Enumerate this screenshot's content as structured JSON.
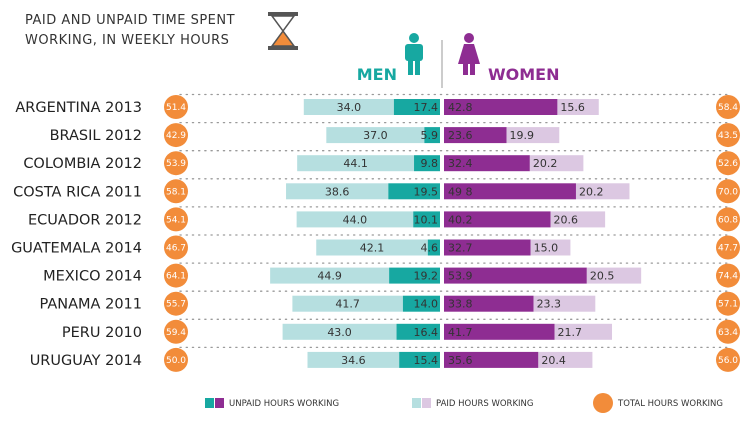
{
  "title_lines": [
    "PAID AND UNPAID TIME SPENT",
    "WORKING, IN WEEKLY HOURS"
  ],
  "colors": {
    "men_unpaid": "#17a8a1",
    "men_paid": "#b6dfe0",
    "women_unpaid": "#8e2d92",
    "women_paid": "#dcc8e2",
    "total": "#f28c3a",
    "icon_hourglass": "#f28c3a"
  },
  "chart_data": {
    "type": "bar",
    "orientation": "horizontal-diverging",
    "men_label": "MEN",
    "women_label": "WOMEN",
    "categories": [
      "ARGENTINA 2013",
      "BRASIL 2012",
      "COLOMBIA 2012",
      "COSTA RICA 2011",
      "ECUADOR 2012",
      "GUATEMALA 2014",
      "MEXICO 2014",
      "PANAMA 2011",
      "PERU 2010",
      "URUGUAY 2014"
    ],
    "series": [
      {
        "name": "UNPAID HOURS WORKING",
        "group": "men",
        "values": [
          17.4,
          5.9,
          9.8,
          19.5,
          10.1,
          4.6,
          19.2,
          14.0,
          16.4,
          15.4
        ]
      },
      {
        "name": "PAID HOURS WORKING",
        "group": "men",
        "values": [
          34.0,
          37.0,
          44.1,
          38.6,
          44.0,
          42.1,
          44.9,
          41.7,
          43.0,
          34.6
        ]
      },
      {
        "name": "UNPAID HOURS WORKING",
        "group": "women",
        "values": [
          42.8,
          23.6,
          32.4,
          49.8,
          40.2,
          32.7,
          53.9,
          33.8,
          41.7,
          35.6
        ]
      },
      {
        "name": "PAID HOURS WORKING",
        "group": "women",
        "values": [
          15.6,
          19.9,
          20.2,
          20.2,
          20.6,
          15.0,
          20.5,
          23.3,
          21.7,
          20.4
        ]
      },
      {
        "name": "TOTAL HOURS WORKING",
        "group": "men",
        "values": [
          51.4,
          42.9,
          53.9,
          58.1,
          54.1,
          46.7,
          64.1,
          55.7,
          59.4,
          50.0
        ]
      },
      {
        "name": "TOTAL HOURS WORKING",
        "group": "women",
        "values": [
          58.4,
          43.5,
          52.6,
          70.0,
          60.8,
          47.7,
          74.4,
          57.1,
          63.4,
          56.0
        ]
      }
    ],
    "men_value_labels_paid": [
      "34.0",
      "37.0",
      "44.1",
      "38.6",
      "44.0",
      "42.1",
      "44.9",
      "41.7",
      "43.0",
      "34.6"
    ],
    "men_value_labels_unpaid": [
      "17.4",
      "5.9",
      "9.8",
      "19.5",
      "10.1",
      "4.6",
      "19.2",
      "14.0",
      "16.4",
      "15.4"
    ],
    "women_value_labels_unpaid": [
      "42.8",
      "23.6",
      "32.4",
      "49 8",
      "40.2",
      "32.7",
      "53.9",
      "33.8",
      "41.7",
      "35.6"
    ],
    "women_value_labels_paid": [
      "15.6",
      "19.9",
      "20.2",
      "20.2",
      "20.6",
      "15.0",
      "20.5",
      "23.3",
      "21.7",
      "20.4"
    ],
    "men_total_labels": [
      "51.4",
      "42.9",
      "53.9",
      "58.1",
      "54.1",
      "46.7",
      "64.1",
      "55.7",
      "59.4",
      "50.0"
    ],
    "women_total_labels": [
      "58.4",
      "43.5",
      "52.6",
      "70.0",
      "60.8",
      "47.7",
      "74.4",
      "57.1",
      "63.4",
      "56.0"
    ],
    "legend": [
      {
        "label": "UNPAID HOURS WORKING"
      },
      {
        "label": "PAID HOURS WORKING"
      },
      {
        "label": "TOTAL HOURS WORKING"
      }
    ],
    "legend_placement": "bottom"
  }
}
